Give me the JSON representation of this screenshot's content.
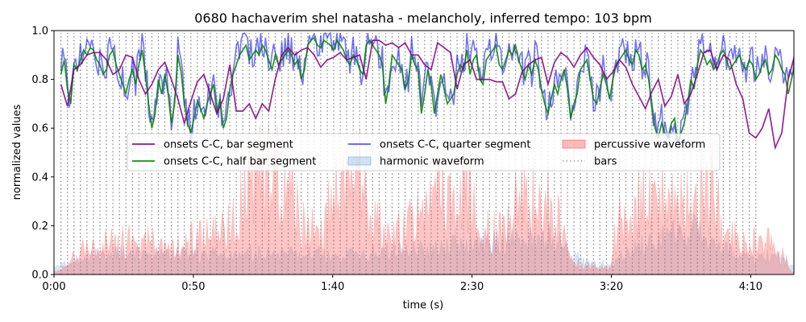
{
  "chart_data": {
    "type": "line",
    "title": "0680 hachaverim shel natasha - melancholy, inferred tempo: 103 bpm",
    "xlabel": "time (s)",
    "ylabel": "normalized values",
    "xlim": [
      0,
      265.5
    ],
    "ylim": [
      0.0,
      1.0
    ],
    "x_ticks": [
      {
        "value": 0,
        "label": "0:00"
      },
      {
        "value": 50,
        "label": "0:50"
      },
      {
        "value": 100,
        "label": "1:40"
      },
      {
        "value": 150,
        "label": "2:30"
      },
      {
        "value": 200,
        "label": "3:20"
      },
      {
        "value": 250,
        "label": "4:10"
      }
    ],
    "y_ticks": [
      {
        "value": 0.0,
        "label": "0.0"
      },
      {
        "value": 0.2,
        "label": "0.2"
      },
      {
        "value": 0.4,
        "label": "0.4"
      },
      {
        "value": 0.6,
        "label": "0.6"
      },
      {
        "value": 0.8,
        "label": "0.8"
      },
      {
        "value": 1.0,
        "label": "1.0"
      }
    ],
    "tempo_bpm": 103,
    "bars": {
      "start": 2.5,
      "period": 2.33,
      "end": 254,
      "line_ymax": 0.99
    },
    "legend": {
      "placement": "center",
      "columns": 3
    },
    "series": [
      {
        "name": "onsets C-C, bar segment",
        "kind": "line",
        "color": "#800080",
        "step": 2.33,
        "x_start": 2.5,
        "values": [
          0.78,
          0.69,
          0.84,
          0.86,
          0.9,
          0.91,
          0.91,
          0.88,
          0.82,
          0.84,
          0.9,
          0.89,
          0.8,
          0.74,
          0.78,
          0.84,
          0.87,
          0.8,
          0.72,
          0.62,
          0.71,
          0.79,
          0.82,
          0.74,
          0.66,
          0.72,
          0.86,
          0.67,
          0.67,
          0.7,
          0.64,
          0.7,
          0.67,
          0.8,
          0.9,
          0.93,
          0.9,
          0.92,
          0.93,
          0.9,
          0.85,
          0.88,
          0.89,
          0.91,
          0.88,
          0.89,
          0.9,
          0.8,
          0.96,
          0.96,
          0.94,
          0.95,
          0.93,
          0.95,
          0.9,
          0.9,
          0.86,
          0.84,
          0.95,
          0.93,
          0.91,
          0.76,
          0.86,
          0.88,
          0.8,
          0.8,
          0.8,
          0.79,
          0.79,
          0.72,
          0.74,
          0.83,
          0.86,
          0.88,
          0.89,
          0.78,
          0.87,
          0.91,
          0.89,
          0.85,
          0.9,
          0.93,
          0.89,
          0.86,
          0.8,
          0.83,
          0.88,
          0.85,
          0.78,
          0.73,
          0.68,
          0.75,
          0.8,
          0.69,
          0.73,
          0.82,
          0.7,
          0.74,
          0.82,
          0.91,
          0.92,
          0.84,
          0.9,
          0.88,
          0.78,
          0.72,
          0.58,
          0.56,
          0.6,
          0.68,
          0.52,
          0.58,
          0.8,
          0.9,
          0.92,
          0.89,
          0.86,
          0.9,
          0.86,
          0.85,
          0.88,
          0.87,
          0.85,
          0.8,
          0.86,
          0.9,
          0.92,
          0.8,
          0.84,
          0.8,
          0.84,
          0.85,
          0.84,
          0.88,
          0.96,
          0.95,
          0.82,
          0.84
        ]
      },
      {
        "name": "onsets C-C, half bar segment",
        "kind": "line",
        "color": "#008000",
        "step": 1.165,
        "x_start": 2.5,
        "values": [
          0.82,
          0.88,
          0.76,
          0.7,
          0.86,
          0.84,
          0.88,
          0.92,
          0.9,
          0.93,
          0.92,
          0.88,
          0.86,
          0.82,
          0.84,
          0.9,
          0.92,
          0.86,
          0.82,
          0.78,
          0.74,
          0.8,
          0.84,
          0.78,
          0.86,
          0.92,
          0.82,
          0.7,
          0.6,
          0.66,
          0.8,
          0.74,
          0.82,
          0.74,
          0.62,
          0.7,
          0.9,
          0.83,
          0.7,
          0.62,
          0.58,
          0.64,
          0.71,
          0.68,
          0.64,
          0.7,
          0.74,
          0.78,
          0.66,
          0.72,
          0.6,
          0.64,
          0.76,
          0.82,
          0.86,
          0.9,
          0.92,
          0.94,
          0.88,
          0.9,
          0.92,
          0.9,
          0.94,
          0.92,
          0.88,
          0.84,
          0.9,
          0.86,
          0.88,
          0.9,
          0.92,
          0.9,
          0.86,
          0.88,
          0.8,
          0.84,
          0.94,
          0.96,
          0.97,
          0.94,
          0.93,
          0.96,
          0.95,
          0.94,
          0.92,
          0.96,
          0.94,
          0.92,
          0.88,
          0.86,
          0.9,
          0.88,
          0.84,
          0.82,
          0.94,
          0.96,
          0.94,
          0.92,
          0.9,
          0.86,
          0.7,
          0.78,
          0.9,
          0.88,
          0.86,
          0.84,
          0.76,
          0.8,
          0.9,
          0.86,
          0.84,
          0.66,
          0.74,
          0.84,
          0.78,
          0.66,
          0.74,
          0.82,
          0.76,
          0.7,
          0.72,
          0.74,
          0.82,
          0.86,
          0.84,
          0.92,
          0.82,
          0.88,
          0.9,
          0.8,
          0.78,
          0.88,
          0.9,
          0.92,
          0.94,
          0.86,
          0.84,
          0.88,
          0.92,
          0.9,
          0.94,
          0.88,
          0.84,
          0.8,
          0.86,
          0.82,
          0.88,
          0.84,
          0.76,
          0.7,
          0.66,
          0.72,
          0.78,
          0.74,
          0.8,
          0.84,
          0.76,
          0.64,
          0.7,
          0.74,
          0.84,
          0.86,
          0.88,
          0.8,
          0.72,
          0.7,
          0.76,
          0.82,
          0.78,
          0.72,
          0.8,
          0.86,
          0.88,
          0.9,
          0.92,
          0.88,
          0.86,
          0.92,
          0.9,
          0.84,
          0.86,
          0.8,
          0.7,
          0.6,
          0.56,
          0.62,
          0.58,
          0.56,
          0.62,
          0.64,
          0.54,
          0.58,
          0.62,
          0.7,
          0.8,
          0.76,
          0.86,
          0.92,
          0.9,
          0.86,
          0.88,
          0.84,
          0.86,
          0.9,
          0.92,
          0.88,
          0.84,
          0.86,
          0.88,
          0.9,
          0.86,
          0.84,
          0.88,
          0.86,
          0.8,
          0.82,
          0.86,
          0.88,
          0.82,
          0.84,
          0.9,
          0.88,
          0.84,
          0.82,
          0.74,
          0.8,
          0.86,
          0.9,
          0.88,
          0.84,
          0.9,
          0.96,
          0.97,
          0.92,
          0.88,
          0.84,
          0.82,
          0.8,
          0.84
        ]
      },
      {
        "name": "onsets C-C, quarter segment",
        "kind": "line",
        "color": "#0000ee",
        "opacity": 0.55,
        "step": 0.5825,
        "x_start": 2.5,
        "generator": {
          "base": "half bar segment",
          "jitter": 0.07,
          "seed": 680
        }
      },
      {
        "name": "harmonic waveform",
        "kind": "area",
        "color": "#6fa8dc",
        "opacity": 0.28,
        "step": 1.0,
        "x_start": 0,
        "envelope": [
          [
            0,
            0.03
          ],
          [
            6,
            0.05
          ],
          [
            10,
            0.07
          ],
          [
            20,
            0.08
          ],
          [
            30,
            0.09
          ],
          [
            40,
            0.08
          ],
          [
            50,
            0.08
          ],
          [
            60,
            0.08
          ],
          [
            65,
            0.07
          ],
          [
            70,
            0.09
          ],
          [
            80,
            0.08
          ],
          [
            90,
            0.08
          ],
          [
            100,
            0.08
          ],
          [
            110,
            0.08
          ],
          [
            120,
            0.09
          ],
          [
            130,
            0.1
          ],
          [
            140,
            0.11
          ],
          [
            150,
            0.12
          ],
          [
            160,
            0.13
          ],
          [
            170,
            0.14
          ],
          [
            180,
            0.15
          ],
          [
            190,
            0.05
          ],
          [
            200,
            0.04
          ],
          [
            210,
            0.12
          ],
          [
            220,
            0.15
          ],
          [
            230,
            0.18
          ],
          [
            240,
            0.1
          ],
          [
            250,
            0.06
          ],
          [
            260,
            0.08
          ],
          [
            265,
            0.04
          ]
        ]
      },
      {
        "name": "percussive waveform",
        "kind": "area",
        "color": "#ff5555",
        "opacity": 0.35,
        "step": 0.45,
        "x_start": 0,
        "envelope": [
          [
            0,
            0.02
          ],
          [
            5,
            0.04
          ],
          [
            8,
            0.1
          ],
          [
            12,
            0.13
          ],
          [
            20,
            0.15
          ],
          [
            30,
            0.17
          ],
          [
            40,
            0.14
          ],
          [
            50,
            0.17
          ],
          [
            60,
            0.2
          ],
          [
            65,
            0.26
          ],
          [
            68,
            0.45
          ],
          [
            75,
            0.5
          ],
          [
            85,
            0.48
          ],
          [
            88,
            0.25
          ],
          [
            95,
            0.2
          ],
          [
            100,
            0.35
          ],
          [
            103,
            0.45
          ],
          [
            110,
            0.48
          ],
          [
            113,
            0.25
          ],
          [
            120,
            0.22
          ],
          [
            125,
            0.2
          ],
          [
            130,
            0.35
          ],
          [
            140,
            0.42
          ],
          [
            148,
            0.48
          ],
          [
            152,
            0.22
          ],
          [
            160,
            0.2
          ],
          [
            166,
            0.35
          ],
          [
            175,
            0.4
          ],
          [
            180,
            0.3
          ],
          [
            185,
            0.08
          ],
          [
            192,
            0.04
          ],
          [
            198,
            0.03
          ],
          [
            200,
            0.05
          ],
          [
            202,
            0.25
          ],
          [
            210,
            0.35
          ],
          [
            220,
            0.38
          ],
          [
            230,
            0.42
          ],
          [
            237,
            0.45
          ],
          [
            240,
            0.18
          ],
          [
            250,
            0.16
          ],
          [
            258,
            0.15
          ],
          [
            262,
            0.08
          ],
          [
            265,
            0.02
          ]
        ],
        "generator": {
          "seed": 6800
        }
      },
      {
        "name": "bars",
        "kind": "vlines",
        "color": "#808080",
        "style": "dotted"
      }
    ]
  }
}
